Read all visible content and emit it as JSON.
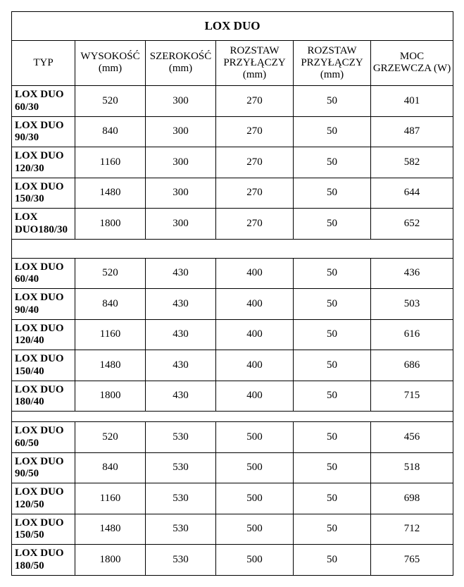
{
  "table": {
    "title": "LOX DUO",
    "columns": [
      "TYP",
      "WYSOKOŚĆ (mm)",
      "SZEROKOŚĆ (mm)",
      "ROZSTAW PRZYŁĄCZY (mm)",
      "ROZSTAW PRZYŁĄCZY (mm)",
      "MOC GRZEWCZA (W)"
    ],
    "groups": [
      {
        "rows": [
          {
            "typ": "LOX DUO 60/30",
            "h": "520",
            "w": "300",
            "p1": "270",
            "p2": "50",
            "moc": "401"
          },
          {
            "typ": "LOX DUO 90/30",
            "h": "840",
            "w": "300",
            "p1": "270",
            "p2": "50",
            "moc": "487"
          },
          {
            "typ": "LOX DUO 120/30",
            "h": "1160",
            "w": "300",
            "p1": "270",
            "p2": "50",
            "moc": "582"
          },
          {
            "typ": "LOX DUO 150/30",
            "h": "1480",
            "w": "300",
            "p1": "270",
            "p2": "50",
            "moc": "644"
          },
          {
            "typ": "LOX DUO180/30",
            "h": "1800",
            "w": "300",
            "p1": "270",
            "p2": "50",
            "moc": "652"
          }
        ],
        "spacer": "wide"
      },
      {
        "rows": [
          {
            "typ": "LOX DUO 60/40",
            "h": "520",
            "w": "430",
            "p1": "400",
            "p2": "50",
            "moc": "436"
          },
          {
            "typ": "LOX DUO 90/40",
            "h": "840",
            "w": "430",
            "p1": "400",
            "p2": "50",
            "moc": "503"
          },
          {
            "typ": "LOX DUO 120/40",
            "h": "1160",
            "w": "430",
            "p1": "400",
            "p2": "50",
            "moc": "616"
          },
          {
            "typ": "LOX DUO 150/40",
            "h": "1480",
            "w": "430",
            "p1": "400",
            "p2": "50",
            "moc": "686"
          },
          {
            "typ": "LOX DUO 180/40",
            "h": "1800",
            "w": "430",
            "p1": "400",
            "p2": "50",
            "moc": "715"
          }
        ],
        "spacer": "narrow"
      },
      {
        "rows": [
          {
            "typ": "LOX DUO 60/50",
            "h": "520",
            "w": "530",
            "p1": "500",
            "p2": "50",
            "moc": "456"
          },
          {
            "typ": "LOX DUO 90/50",
            "h": "840",
            "w": "530",
            "p1": "500",
            "p2": "50",
            "moc": "518"
          },
          {
            "typ": "LOX DUO 120/50",
            "h": "1160",
            "w": "530",
            "p1": "500",
            "p2": "50",
            "moc": "698"
          },
          {
            "typ": "LOX DUO 150/50",
            "h": "1480",
            "w": "530",
            "p1": "500",
            "p2": "50",
            "moc": "712"
          },
          {
            "typ": "LOX DUO 180/50",
            "h": "1800",
            "w": "530",
            "p1": "500",
            "p2": "50",
            "moc": "765"
          }
        ],
        "spacer": null
      }
    ]
  },
  "colors": {
    "text": "#000000",
    "background": "#ffffff",
    "border": "#000000"
  },
  "font": {
    "family": "Times New Roman",
    "body_pt": 11,
    "title_pt": 13
  }
}
